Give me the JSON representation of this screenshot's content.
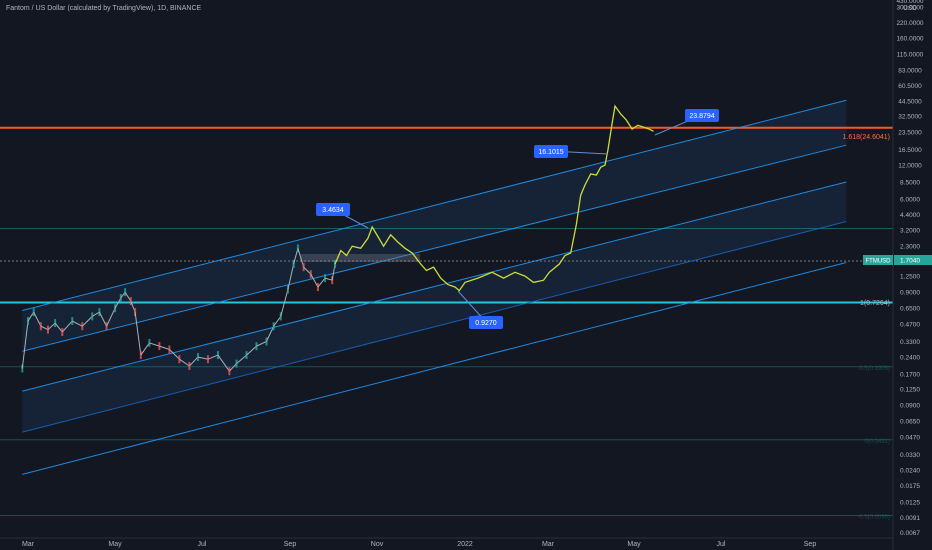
{
  "chart_data": {
    "type": "line",
    "title": "Fantom / US Dollar (calculated by TradingView), 1D, BINANCE",
    "currency": "USD",
    "current_price": "1.7040",
    "current_price_tag": "FTMUSD",
    "x_ticks": [
      "Mar",
      "May",
      "Jul",
      "Sep",
      "Nov",
      "2022",
      "Mar",
      "May",
      "Jul",
      "Sep"
    ],
    "y_ticks": [
      "300.0000",
      "220.0000",
      "160.0000",
      "115.0000",
      "83.0000",
      "60.5000",
      "44.5000",
      "32.5000",
      "23.5000",
      "16.5000",
      "12.0000",
      "8.5000",
      "6.0000",
      "4.4000",
      "3.2000",
      "2.3000",
      "1.7040",
      "1.2500",
      "0.9000",
      "0.6500",
      "0.4700",
      "0.3300",
      "0.2400",
      "0.1700",
      "0.1250",
      "0.0900",
      "0.0650",
      "0.0470",
      "0.0330",
      "0.0240",
      "0.0175",
      "0.0125",
      "0.0091",
      "0.0067"
    ],
    "y_top_partial": "430.0000",
    "scale": "log",
    "fib_labels": {
      "level_1618": "1.618(24.6041)",
      "level_1": "1(0.7264)",
      "faded_1": "0.5(0.1905)",
      "faded_2": "0(0.0431)",
      "faded_3": "-0.5(0.0095)"
    },
    "callouts": [
      "3.4634",
      "16.1015",
      "23.8794",
      "0.9270"
    ],
    "series": [
      {
        "style": "candles",
        "color": "#26a69a",
        "points": [
          [
            "2021-02-25",
            0.19
          ],
          [
            "2021-03-01",
            0.5
          ],
          [
            "2021-03-05",
            0.6
          ],
          [
            "2021-03-10",
            0.45
          ],
          [
            "2021-03-15",
            0.42
          ],
          [
            "2021-03-20",
            0.48
          ],
          [
            "2021-03-25",
            0.4
          ],
          [
            "2021-04-01",
            0.5
          ],
          [
            "2021-04-08",
            0.45
          ],
          [
            "2021-04-15",
            0.55
          ],
          [
            "2021-04-20",
            0.6
          ],
          [
            "2021-04-25",
            0.45
          ],
          [
            "2021-05-01",
            0.65
          ],
          [
            "2021-05-05",
            0.8
          ],
          [
            "2021-05-08",
            0.9
          ],
          [
            "2021-05-12",
            0.75
          ],
          [
            "2021-05-15",
            0.6
          ],
          [
            "2021-05-19",
            0.25
          ],
          [
            "2021-05-25",
            0.32
          ],
          [
            "2021-06-01",
            0.3
          ],
          [
            "2021-06-08",
            0.28
          ],
          [
            "2021-06-15",
            0.23
          ],
          [
            "2021-06-22",
            0.2
          ],
          [
            "2021-06-28",
            0.24
          ],
          [
            "2021-07-05",
            0.23
          ],
          [
            "2021-07-12",
            0.25
          ],
          [
            "2021-07-20",
            0.18
          ],
          [
            "2021-07-25",
            0.21
          ],
          [
            "2021-08-01",
            0.25
          ],
          [
            "2021-08-08",
            0.3
          ],
          [
            "2021-08-15",
            0.33
          ],
          [
            "2021-08-20",
            0.45
          ],
          [
            "2021-08-25",
            0.55
          ],
          [
            "2021-08-30",
            0.95
          ],
          [
            "2021-09-03",
            1.6
          ],
          [
            "2021-09-06",
            2.2
          ],
          [
            "2021-09-10",
            1.5
          ],
          [
            "2021-09-15",
            1.3
          ],
          [
            "2021-09-20",
            1.0
          ],
          [
            "2021-09-25",
            1.2
          ],
          [
            "2021-09-30",
            1.15
          ],
          [
            "2021-10-02",
            1.6
          ]
        ]
      },
      {
        "style": "line",
        "color": "#cddc39",
        "points": [
          [
            "2021-10-02",
            1.6
          ],
          [
            "2021-10-06",
            2.1
          ],
          [
            "2021-10-10",
            1.9
          ],
          [
            "2021-10-14",
            2.3
          ],
          [
            "2021-10-20",
            2.2
          ],
          [
            "2021-10-25",
            2.7
          ],
          [
            "2021-10-28",
            3.4
          ],
          [
            "2021-11-01",
            2.8
          ],
          [
            "2021-11-05",
            2.3
          ],
          [
            "2021-11-10",
            2.9
          ],
          [
            "2021-11-15",
            2.5
          ],
          [
            "2021-11-20",
            2.2
          ],
          [
            "2021-11-25",
            2.0
          ],
          [
            "2021-12-01",
            1.6
          ],
          [
            "2021-12-05",
            1.4
          ],
          [
            "2021-12-10",
            1.5
          ],
          [
            "2021-12-15",
            1.2
          ],
          [
            "2021-12-20",
            1.05
          ],
          [
            "2021-12-25",
            1.0
          ],
          [
            "2021-12-28",
            0.93
          ],
          [
            "2022-01-01",
            1.1
          ],
          [
            "2022-01-10",
            1.2
          ],
          [
            "2022-01-20",
            1.35
          ],
          [
            "2022-01-28",
            1.2
          ],
          [
            "2022-02-05",
            1.35
          ],
          [
            "2022-02-12",
            1.25
          ],
          [
            "2022-02-18",
            1.1
          ],
          [
            "2022-02-25",
            1.15
          ],
          [
            "2022-03-01",
            1.35
          ],
          [
            "2022-03-08",
            1.6
          ],
          [
            "2022-03-12",
            1.9
          ],
          [
            "2022-03-16",
            2.0
          ],
          [
            "2022-03-20",
            3.6
          ],
          [
            "2022-03-23",
            6.5
          ],
          [
            "2022-03-26",
            8.0
          ],
          [
            "2022-03-30",
            10.0
          ],
          [
            "2022-04-03",
            9.8
          ],
          [
            "2022-04-06",
            11.5
          ],
          [
            "2022-04-09",
            12.0
          ],
          [
            "2022-04-11",
            16.1
          ],
          [
            "2022-04-14",
            28.0
          ],
          [
            "2022-04-16",
            40.0
          ],
          [
            "2022-04-20",
            34.0
          ],
          [
            "2022-04-24",
            30.0
          ],
          [
            "2022-04-28",
            25.0
          ],
          [
            "2022-05-02",
            27.0
          ],
          [
            "2022-05-06",
            26.0
          ],
          [
            "2022-05-10",
            25.0
          ],
          [
            "2022-05-13",
            23.88
          ]
        ]
      }
    ],
    "channel": {
      "lines": [
        {
          "x0": "2021-02-25",
          "y0": 0.62,
          "x1": "2022-09-25",
          "y1": 45.0,
          "color": "#2196f3"
        },
        {
          "x0": "2021-02-25",
          "y0": 0.12,
          "x1": "2022-09-25",
          "y1": 8.5,
          "color": "#2196f3"
        },
        {
          "x0": "2021-02-25",
          "y0": 0.27,
          "x1": "2022-09-25",
          "y1": 18.0,
          "color": "#2196f3"
        },
        {
          "x0": "2021-02-25",
          "y0": 0.022,
          "x1": "2022-09-25",
          "y1": 1.65,
          "color": "#2196f3"
        },
        {
          "x0": "2021-02-25",
          "y0": 0.052,
          "x1": "2022-09-25",
          "y1": 3.8,
          "color": "#1565c0"
        }
      ],
      "fills": [
        [
          0,
          2
        ],
        [
          1,
          4
        ]
      ]
    },
    "hlines": [
      {
        "value": 25.7,
        "color": "#ff5722",
        "width": 2
      },
      {
        "value": 0.73,
        "color": "#26c6da",
        "width": 2
      },
      {
        "value": 3.3,
        "color": "#26a69a",
        "width": 1,
        "opacity": 0.5
      },
      {
        "value": 1.7,
        "color": "#787b86",
        "width": 1,
        "dash": "2,2"
      },
      {
        "value": 0.197,
        "color": "#26a69a",
        "width": 1,
        "opacity": 0.4
      },
      {
        "value": 0.0445,
        "color": "#26a69a",
        "width": 1,
        "opacity": 0.4
      },
      {
        "value": 0.0095,
        "color": "#26a69a",
        "width": 1,
        "opacity": 0.4
      }
    ],
    "colors": {
      "background": "#131722",
      "text": "#b2b5be",
      "callout": "#2962ff",
      "price_tag": "#26a69a",
      "fib_orange": "#ff7043",
      "fib_cyan": "#b2b5be"
    }
  }
}
